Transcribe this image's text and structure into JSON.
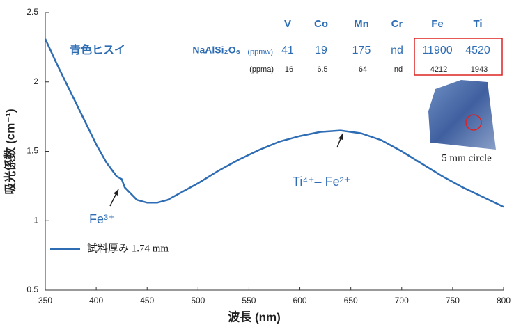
{
  "chart_data": {
    "type": "line",
    "x_label": "波長 (nm)",
    "y_label": "吸光係数 (cm⁻¹)",
    "x": [
      350,
      360,
      370,
      380,
      390,
      400,
      410,
      420,
      425,
      428,
      440,
      450,
      460,
      470,
      480,
      500,
      520,
      540,
      560,
      580,
      600,
      620,
      640,
      660,
      680,
      700,
      720,
      740,
      760,
      780,
      800
    ],
    "series": [
      {
        "name": "試料厚み 1.74 mm",
        "color": "#2e6db4",
        "values": [
          2.31,
          2.15,
          2.0,
          1.85,
          1.7,
          1.55,
          1.42,
          1.32,
          1.3,
          1.24,
          1.15,
          1.13,
          1.13,
          1.15,
          1.19,
          1.27,
          1.36,
          1.44,
          1.51,
          1.57,
          1.61,
          1.64,
          1.65,
          1.63,
          1.58,
          1.5,
          1.41,
          1.32,
          1.24,
          1.17,
          1.1
        ]
      }
    ],
    "xlim": [
      350,
      800
    ],
    "xticks": [
      350,
      400,
      450,
      500,
      550,
      600,
      650,
      700,
      750,
      800
    ],
    "ylim": [
      0.5,
      2.5
    ],
    "yticks": [
      0.5,
      1,
      1.5,
      2,
      2.5
    ],
    "annotations": [
      {
        "text": "Fe³⁺",
        "x": 425,
        "y": 1.3
      },
      {
        "text": "Ti⁴⁺– Fe²⁺",
        "x": 645,
        "y": 1.65
      }
    ]
  },
  "sample_label": "青色ヒスイ",
  "table": {
    "headers": [
      "V",
      "Co",
      "Mn",
      "Cr",
      "Fe",
      "Ti"
    ],
    "rows": [
      {
        "label": "NaAlSi₂O₆",
        "unit": "(ppmw)",
        "values": [
          41,
          19,
          175,
          "nd",
          11900,
          4520
        ]
      },
      {
        "unit": "(ppma)",
        "values": [
          16,
          6.5,
          64,
          "nd",
          4212,
          1943
        ]
      }
    ]
  },
  "image_caption": "5 mm circle"
}
